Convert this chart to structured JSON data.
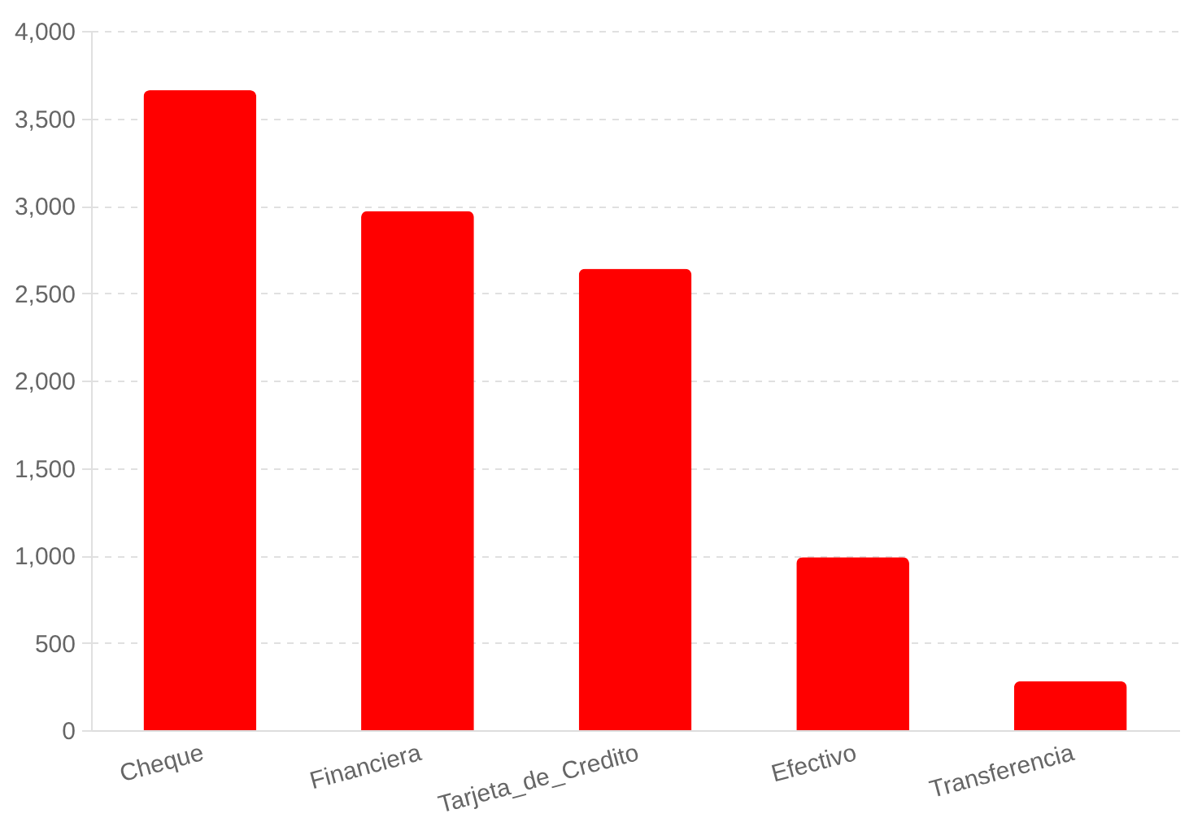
{
  "chart_data": {
    "type": "bar",
    "categories": [
      "Cheque",
      "Financiera",
      "Tarjeta_de_Credito",
      "Efectivo",
      "Transferencia"
    ],
    "values": [
      3660,
      2970,
      2640,
      990,
      280
    ],
    "color": "#ff0000",
    "ylim": [
      0,
      4000
    ],
    "yticks": [
      0,
      {
        "value": 500,
        "label": "500"
      },
      {
        "value": 1000,
        "label": "1,000"
      },
      {
        "value": 1500,
        "label": "1,500"
      },
      {
        "value": 2000,
        "label": "2,000"
      },
      {
        "value": 2500,
        "label": "2,500"
      },
      {
        "value": 3000,
        "label": "3,000"
      },
      {
        "value": 3500,
        "label": "3,500"
      },
      {
        "value": 4000,
        "label": "4,000"
      }
    ],
    "grid": "y"
  }
}
